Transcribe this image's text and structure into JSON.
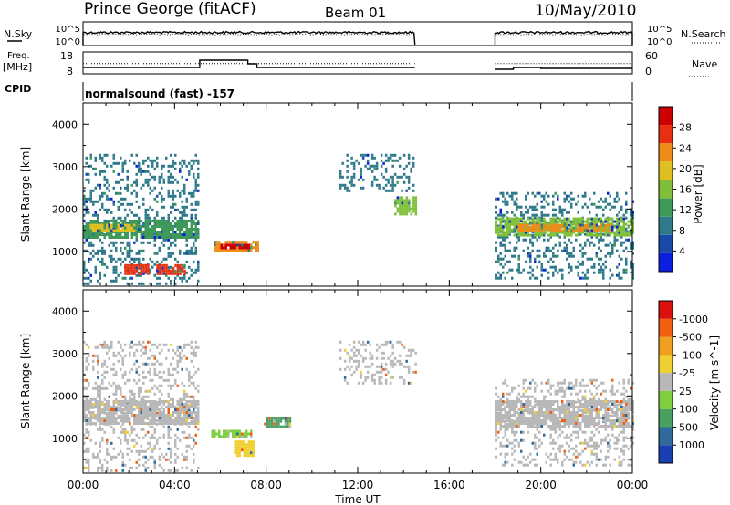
{
  "header": {
    "station": "Prince George (fitACF)",
    "beam": "Beam 01",
    "date": "10/May/2010"
  },
  "strip_labels": {
    "nsky": "N.Sky",
    "nsky_ticks": [
      "10^5",
      "10^0"
    ],
    "nsearch": "N.Search",
    "nsearch_ticks": [
      "10^5",
      "10^0"
    ],
    "freq": "Freq.",
    "freq_unit": "[MHz]",
    "freq_ticks": [
      "18",
      "8"
    ],
    "nave": "Nave",
    "nave_ticks": [
      "60",
      "0"
    ],
    "cpid": "CPID",
    "cpid_value": "normalsound (fast) -157"
  },
  "colors": {
    "power_scale": [
      "#0a1fe0",
      "#1a4aa8",
      "#2f7a8a",
      "#3f9a5a",
      "#7fbf3a",
      "#e0c020",
      "#f08a18",
      "#e83010",
      "#cc0000"
    ],
    "velocity_scale": [
      "#1840b0",
      "#2f6a9a",
      "#4aa060",
      "#7ed040",
      "#b8b8b8",
      "#f0d030",
      "#f0a020",
      "#f06010",
      "#dd1010"
    ]
  },
  "chart_data": [
    {
      "type": "line",
      "name": "status-strip",
      "x_range_hours": [
        0,
        24
      ],
      "data_gap_hours": [
        14.5,
        18.0
      ],
      "freq_mhz": {
        "x": [
          0,
          5.1,
          5.1,
          7.2,
          7.2,
          7.6,
          7.6,
          14.5,
          18.0,
          18.8,
          18.8,
          20.0,
          20.0,
          24
        ],
        "y": [
          10.5,
          10.5,
          14.5,
          14.5,
          12.5,
          12.5,
          10.5,
          10.5,
          9.5,
          9.5,
          10.5,
          10.5,
          10.0,
          10.0
        ]
      },
      "nsky_level": 0.55
    },
    {
      "type": "heatmap",
      "name": "power-panel",
      "xlabel": "",
      "ylabel": "Slant Range [km]",
      "xlim": [
        0,
        24
      ],
      "ylim": [
        180,
        4500
      ],
      "y_ticks": [
        1000,
        2000,
        3000,
        4000
      ],
      "colorbar_label": "Power [dB]",
      "colorbar_ticks": [
        "4",
        "8",
        "12",
        "16",
        "20",
        "24",
        "28"
      ],
      "regions": [
        {
          "t0": 0.0,
          "t1": 5.0,
          "r0": 250,
          "r1": 3300,
          "color": "#2f7a8a",
          "texture": "scatter"
        },
        {
          "t0": 0.0,
          "t1": 5.0,
          "r0": 1350,
          "r1": 1750,
          "color": "#3f9a5a",
          "texture": "band"
        },
        {
          "t0": 0.3,
          "t1": 2.2,
          "r0": 1480,
          "r1": 1650,
          "color": "#e0c020",
          "texture": "band"
        },
        {
          "t0": 1.8,
          "t1": 2.8,
          "r0": 450,
          "r1": 700,
          "color": "#e83010",
          "texture": "blob"
        },
        {
          "t0": 3.2,
          "t1": 4.4,
          "r0": 480,
          "r1": 700,
          "color": "#e83010",
          "texture": "blob"
        },
        {
          "t0": 5.7,
          "t1": 7.6,
          "r0": 1000,
          "r1": 1250,
          "color": "#f08a18",
          "texture": "band"
        },
        {
          "t0": 6.0,
          "t1": 7.2,
          "r0": 1080,
          "r1": 1180,
          "color": "#cc0000",
          "texture": "blob"
        },
        {
          "t0": 11.2,
          "t1": 14.5,
          "r0": 2400,
          "r1": 3300,
          "color": "#2f7a8a",
          "texture": "scatter"
        },
        {
          "t0": 13.6,
          "t1": 14.5,
          "r0": 1900,
          "r1": 2300,
          "color": "#7fbf3a",
          "texture": "band"
        },
        {
          "t0": 18.0,
          "t1": 24.0,
          "r0": 400,
          "r1": 2400,
          "color": "#2f7a8a",
          "texture": "scatter"
        },
        {
          "t0": 18.0,
          "t1": 24.0,
          "r0": 1400,
          "r1": 1800,
          "color": "#7fbf3a",
          "texture": "band"
        },
        {
          "t0": 19.0,
          "t1": 23.0,
          "r0": 1500,
          "r1": 1650,
          "color": "#f08a18",
          "texture": "band"
        }
      ]
    },
    {
      "type": "heatmap",
      "name": "velocity-panel",
      "xlabel": "Time UT",
      "ylabel": "Slant Range [km]",
      "xlim": [
        0,
        24
      ],
      "ylim": [
        180,
        4500
      ],
      "x_ticks": [
        "00:00",
        "04:00",
        "08:00",
        "12:00",
        "16:00",
        "20:00",
        "00:00"
      ],
      "y_ticks": [
        1000,
        2000,
        3000,
        4000
      ],
      "colorbar_label": "Velocity [m s^-1]",
      "colorbar_ticks": [
        "-1000",
        "-500",
        "-100",
        "-25",
        "25",
        "100",
        "500",
        "1000"
      ],
      "regions": [
        {
          "t0": 0.0,
          "t1": 5.0,
          "r0": 250,
          "r1": 3300,
          "color": "#b8b8b8",
          "texture": "scatter"
        },
        {
          "t0": 0.0,
          "t1": 5.0,
          "r0": 1350,
          "r1": 1900,
          "color": "#b8b8b8",
          "texture": "band"
        },
        {
          "t0": 5.6,
          "t1": 7.3,
          "r0": 1050,
          "r1": 1200,
          "color": "#7ed040",
          "texture": "band"
        },
        {
          "t0": 7.9,
          "t1": 9.0,
          "r0": 1250,
          "r1": 1500,
          "color": "#4aa060",
          "texture": "blob"
        },
        {
          "t0": 6.6,
          "t1": 7.4,
          "r0": 600,
          "r1": 950,
          "color": "#f0d030",
          "texture": "blob"
        },
        {
          "t0": 11.2,
          "t1": 14.5,
          "r0": 2300,
          "r1": 3300,
          "color": "#b8b8b8",
          "texture": "scatter"
        },
        {
          "t0": 18.0,
          "t1": 24.0,
          "r0": 400,
          "r1": 2400,
          "color": "#b8b8b8",
          "texture": "scatter"
        },
        {
          "t0": 18.0,
          "t1": 24.0,
          "r0": 1300,
          "r1": 1900,
          "color": "#b8b8b8",
          "texture": "band"
        }
      ]
    }
  ]
}
